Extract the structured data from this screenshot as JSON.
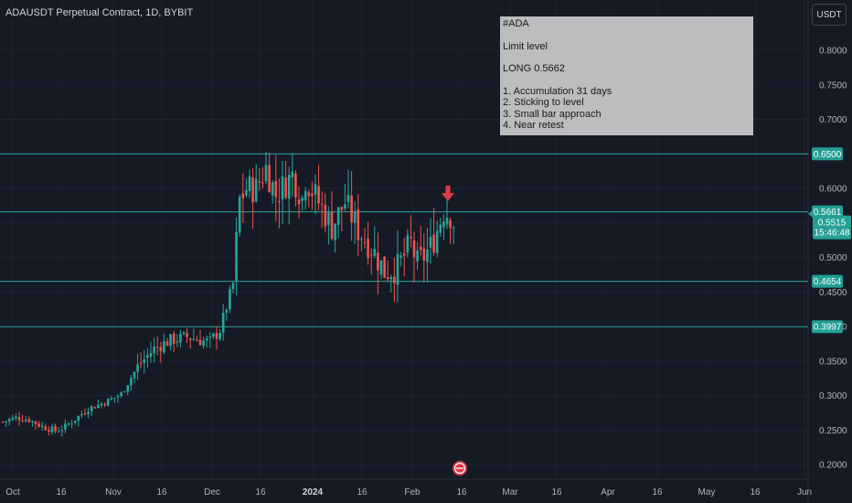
{
  "header": {
    "title": "ADAUSDT Perpetual Contract, 1D, BYBIT"
  },
  "toolbar": {
    "currency_label": "USDT"
  },
  "note": {
    "lines": [
      "#ADA",
      "",
      "Limit level",
      "",
      "LONG 0.5662",
      "",
      "1. Accumulation 31 days",
      "2. Sticking to level",
      "3. Small bar approach",
      "4. Near retest"
    ]
  },
  "colors": {
    "background": "#161a25",
    "grid": "#1f2330",
    "level_line": "#26a69a",
    "level_badge": "#22a093",
    "up_candle": "#26a69a",
    "down_candle": "#ef5350",
    "arrow": "#e03a47",
    "note_bg": "#bcbdbf"
  },
  "chart_data": {
    "type": "candlestick",
    "title": "ADAUSDT Perpetual Contract, 1D, BYBIT",
    "y_axis": {
      "ticks": [
        "0.8000",
        "0.7500",
        "0.7000",
        "0.6500",
        "0.6000",
        "0.5500",
        "0.5000",
        "0.4500",
        "0.4000",
        "0.3500",
        "0.3000",
        "0.2500",
        "0.2000"
      ],
      "tick_values": [
        0.8,
        0.75,
        0.7,
        0.65,
        0.6,
        0.55,
        0.5,
        0.45,
        0.4,
        0.35,
        0.3,
        0.25,
        0.2
      ],
      "range": [
        0.192,
        0.852
      ]
    },
    "x_axis": {
      "ticks": [
        "Oct",
        "16",
        "Nov",
        "16",
        "Dec",
        "16",
        "2024",
        "16",
        "Feb",
        "16",
        "Mar",
        "16",
        "Apr",
        "16",
        "May",
        "16",
        "Jun"
      ],
      "bold_ticks": [
        "2024"
      ]
    },
    "levels": [
      {
        "label": "0.6500",
        "value": 0.65
      },
      {
        "label": "0.5661",
        "value": 0.5661
      },
      {
        "label": "0.4654",
        "value": 0.4654
      },
      {
        "label": "0.3997",
        "value": 0.3997
      }
    ],
    "current_price": {
      "value": "0.5515",
      "countdown": "15:46:48"
    },
    "marker": {
      "type": "down-arrow",
      "note": "LONG 0.5662"
    },
    "price_path": [
      [
        0,
        0.262
      ],
      [
        4,
        0.268
      ],
      [
        8,
        0.265
      ],
      [
        12,
        0.255
      ],
      [
        16,
        0.249
      ],
      [
        18,
        0.252
      ],
      [
        21,
        0.262
      ],
      [
        26,
        0.281
      ],
      [
        31,
        0.29
      ],
      [
        36,
        0.302
      ],
      [
        41,
        0.342
      ],
      [
        46,
        0.368
      ],
      [
        51,
        0.38
      ],
      [
        56,
        0.385
      ],
      [
        61,
        0.379
      ],
      [
        63,
        0.378
      ],
      [
        66,
        0.395
      ],
      [
        70,
        0.462
      ],
      [
        72,
        0.583
      ],
      [
        74,
        0.6
      ],
      [
        77,
        0.6
      ],
      [
        80,
        0.63
      ],
      [
        83,
        0.59
      ],
      [
        88,
        0.62
      ],
      [
        91,
        0.585
      ],
      [
        92,
        0.615
      ],
      [
        96,
        0.58
      ],
      [
        100,
        0.545
      ],
      [
        104,
        0.58
      ],
      [
        108,
        0.54
      ],
      [
        112,
        0.515
      ],
      [
        116,
        0.48
      ],
      [
        120,
        0.485
      ],
      [
        124,
        0.52
      ],
      [
        126,
        0.49
      ],
      [
        130,
        0.515
      ],
      [
        132,
        0.54
      ],
      [
        134,
        0.568
      ],
      [
        136,
        0.562
      ],
      [
        137,
        0.551
      ]
    ]
  }
}
